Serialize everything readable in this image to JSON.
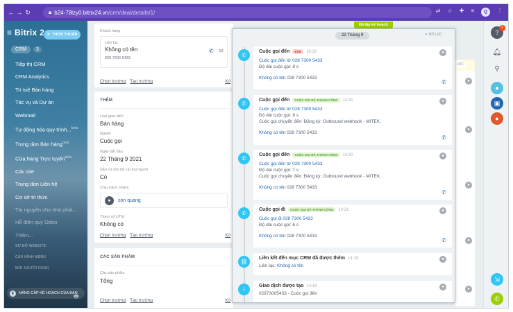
{
  "browser": {
    "url_host": "b24-78lzy0.bitrix24.vn",
    "url_path": "/crm/deal/details/1/",
    "profile_initial": "Q"
  },
  "sidebar": {
    "logo": "Bitrix 2",
    "crm_label": "CRM",
    "crm_count": "3",
    "items": [
      {
        "label": "Tiếp thị CRM",
        "sup": ""
      },
      {
        "label": "CRM Analytics",
        "sup": ""
      },
      {
        "label": "Trí tuệ Bán hàng",
        "sup": ""
      },
      {
        "label": "Tác vụ và Dự án",
        "sup": ""
      },
      {
        "label": "Webmail",
        "sup": ""
      },
      {
        "label": "Tự động hóa quy trình...",
        "sup": "beta"
      },
      {
        "label": "Trung tâm Bán hàng",
        "sup": "beta"
      },
      {
        "label": "Cửa hàng Trực tuyến",
        "sup": "beta"
      },
      {
        "label": "Các site",
        "sup": ""
      },
      {
        "label": "Trung tâm Liên hệ",
        "sup": ""
      },
      {
        "label": "Cơ sở tri thức",
        "sup": ""
      },
      {
        "label": "Tài nguyên cho nhà phát...",
        "sup": ""
      },
      {
        "label": "Hỗ điện quy Odoo",
        "sup": ""
      },
      {
        "label": "Thêm...",
        "sup": ""
      }
    ],
    "section1": "SƠ ĐỒ WEBSITE",
    "section2": "CẤU HÌNH MENU",
    "section3": "MỜI NGƯỜI DÙNG",
    "upgrade": "NÂNG CẤP KẾ HOẠCH CỦA BẠN"
  },
  "deal": {
    "close_button": "THOÁ THUẬN",
    "contact_label": "Khách hàng",
    "contact_sub": "Liên lạc",
    "contact_name": "Không có tên",
    "contact_phone": "028 7300 5433",
    "choose_field": "Chọn trường",
    "create_field": "Tạo trường",
    "remove": "Xó",
    "more_section": "THÊM",
    "f1_label": "Loại giao dịch",
    "f1_value": "Bán hàng",
    "f2_label": "Nguồn",
    "f2_value": "Cuộc gọi",
    "f3_label": "Ngày bắt đầu",
    "f3_value": "22 Tháng 9 2021",
    "f4_label": "Sẵn có cho tất cả mọi người",
    "f4_value": "Có",
    "f5_label": "Chịu trách nhiệm",
    "f5_value": "son quang",
    "f6_label": "Tham số UTM",
    "f6_value": "Không có",
    "products_section": "CÁC SẢN PHẨM",
    "f7_label": "Các sản phẩm",
    "f7_value": "Tổng"
  },
  "timeline": {
    "top_badge": "Đã lập kế hoạch",
    "date": "22 Tháng 9",
    "filter": "BỘ LỌC",
    "items": [
      {
        "title": "Cuộc gọi đến",
        "badge": "BẬN",
        "badge_type": "red",
        "time": "18:18",
        "line1": "Cuộc gọi đến từ 028 7300 5433",
        "line2": "Độ dài cuộc gọi: 8 s",
        "line2b": "",
        "contact": "Không có tên",
        "phone": "028 7300 5433"
      },
      {
        "title": "Cuộc gọi đến",
        "badge": "CUỘC GỌI ĐÃ THÀNH CÔNG",
        "badge_type": "green",
        "time": "14:31",
        "line1": "Cuộc gọi đến từ 028 7300 5433",
        "line2": "Độ dài cuộc gọi: 8 s",
        "line2b": "Cuộc gọi chuyển đến: Đăng ký: Outbound webhook - MITEK.",
        "contact": "Không có tên",
        "phone": "028 7300 5433"
      },
      {
        "title": "Cuộc gọi đến",
        "badge": "CUỘC GỌI ĐÃ THÀNH CÔNG",
        "badge_type": "green",
        "time": "14:30",
        "line1": "Cuộc gọi đến từ 028 7300 5433",
        "line2": "Độ dài cuộc gọi: 7 s",
        "line2b": "Cuộc gọi chuyển đến: Đăng ký: Outbound webhook - MITEK.",
        "contact": "Không có tên",
        "phone": "028 7300 5433"
      },
      {
        "title": "Cuộc gọi đi",
        "badge": "CUỘC GỌI ĐÃ THÀNH CÔNG",
        "badge_type": "green",
        "time": "14:21",
        "line1": "Cuộc gọi đi 028 7300 5433",
        "line2": "Độ dài cuộc gọi: 6 s",
        "line2b": "",
        "contact": "Không có tên",
        "phone": "028 7300 5433"
      }
    ],
    "link_title": "Liên kết đến mục CRM đã được thêm",
    "link_time": "14:18",
    "link_label": "Liên lạc:",
    "link_value": "Không có tên",
    "deal_title": "Giao dịch được tạo",
    "deal_time": "14:18",
    "deal_line": "02873005433 - Cuộc gọi đến"
  },
  "right": {
    "help_badge": "5",
    "filter_label": "BỘ LỌC"
  }
}
